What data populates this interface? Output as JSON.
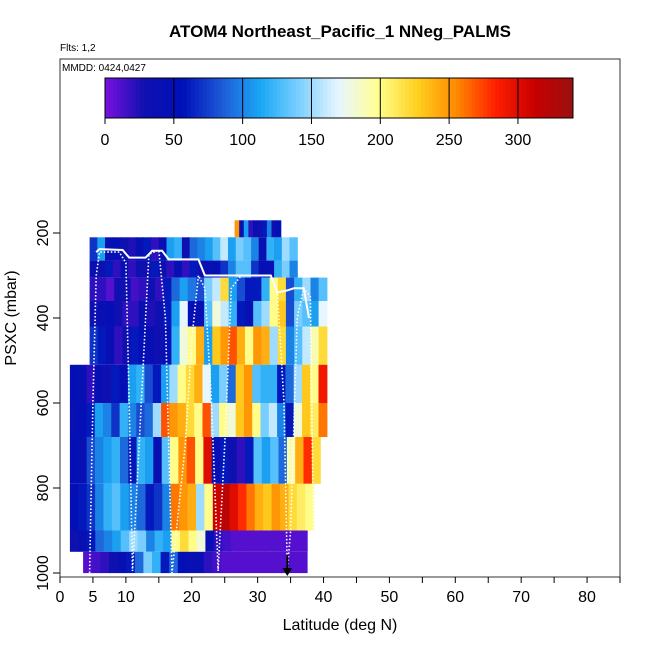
{
  "chart_data": {
    "type": "heatmap",
    "title": "ATOM4 Northeast_Pacific_1 NNeg_PALMS",
    "flights_label": "Flts: 1,2",
    "dates_label": "MMDD: 0424,0427",
    "xlabel": "Latitude (deg N)",
    "ylabel": "PSXC (mbar)",
    "xlim": [
      0,
      85
    ],
    "ylim": [
      1000,
      0
    ],
    "x_ticks": [
      0,
      5,
      10,
      20,
      30,
      40,
      50,
      60,
      70,
      80
    ],
    "x_minor_ticks": [
      15,
      25,
      35,
      45,
      55,
      65,
      75,
      85
    ],
    "y_ticks": [
      200,
      400,
      600,
      800,
      1000
    ],
    "colorbar": {
      "min": 0,
      "max": 340,
      "ticks": [
        0,
        50,
        100,
        150,
        200,
        250,
        300
      ],
      "colors": [
        "#7a10e0",
        "#1010b0",
        "#0010b8",
        "#1e5ad6",
        "#1aa8f5",
        "#7fd0ff",
        "#e8f6ff",
        "#ffff90",
        "#ffd020",
        "#ff8a00",
        "#ff2000",
        "#c80000",
        "#9a1010"
      ]
    },
    "arrow_marker_latitude": 34.5,
    "pressure_levels": [
      {
        "p0": 210,
        "p1": 265,
        "lat_start": 4.5,
        "lat_end": 36.0,
        "values": [
          70,
          110,
          40,
          50,
          30,
          25,
          45,
          60,
          20,
          40,
          110,
          120,
          30,
          90,
          100,
          110,
          130,
          160,
          110,
          140,
          130,
          100,
          40,
          120,
          110,
          150,
          130
        ]
      },
      {
        "p0": 265,
        "p1": 305,
        "lat_start": 4.5,
        "lat_end": 36.0,
        "values": [
          40,
          30,
          60,
          20,
          40,
          20,
          30,
          30,
          60,
          30,
          20,
          40,
          20,
          60,
          30,
          40,
          50,
          70,
          100,
          130,
          130,
          70,
          40,
          40,
          120,
          140,
          100
        ]
      },
      {
        "p0": 305,
        "p1": 360,
        "lat_start": 4.5,
        "lat_end": 40.5,
        "values": [
          20,
          20,
          10,
          30,
          30,
          15,
          20,
          30,
          20,
          60,
          90,
          110,
          95,
          80,
          140,
          160,
          220,
          110,
          80,
          60,
          60,
          120,
          200,
          220,
          80,
          120,
          150,
          100,
          130
        ]
      },
      {
        "p0": 360,
        "p1": 420,
        "lat_start": 4.5,
        "lat_end": 40.5,
        "values": [
          30,
          40,
          50,
          30,
          20,
          20,
          40,
          25,
          30,
          60,
          110,
          170,
          50,
          40,
          130,
          180,
          160,
          120,
          60,
          40,
          130,
          150,
          200,
          230,
          80,
          140,
          130,
          110,
          170
        ]
      },
      {
        "p0": 420,
        "p1": 510,
        "lat_start": 4.5,
        "lat_end": 40.5,
        "values": [
          70,
          60,
          40,
          20,
          30,
          60,
          50,
          40,
          30,
          50,
          120,
          180,
          200,
          240,
          110,
          230,
          250,
          270,
          240,
          200,
          250,
          240,
          150,
          220,
          100,
          130,
          160,
          190,
          220
        ]
      },
      {
        "p0": 510,
        "p1": 600,
        "lat_start": 1.5,
        "lat_end": 40.5,
        "values": [
          50,
          40,
          20,
          40,
          30,
          60,
          50,
          110,
          120,
          80,
          60,
          110,
          150,
          200,
          220,
          240,
          170,
          110,
          140,
          90,
          230,
          250,
          130,
          120,
          120,
          60,
          90,
          150,
          230,
          200,
          290
        ]
      },
      {
        "p0": 600,
        "p1": 680,
        "lat_start": 1.5,
        "lat_end": 40.5,
        "values": [
          40,
          50,
          60,
          110,
          100,
          70,
          120,
          100,
          80,
          90,
          150,
          270,
          250,
          240,
          220,
          200,
          270,
          150,
          200,
          180,
          230,
          250,
          200,
          140,
          160,
          100,
          60,
          180,
          230,
          210,
          260
        ]
      },
      {
        "p0": 680,
        "p1": 790,
        "lat_start": 1.5,
        "lat_end": 39.5,
        "values": [
          50,
          40,
          80,
          100,
          110,
          120,
          90,
          60,
          120,
          110,
          40,
          130,
          200,
          250,
          270,
          200,
          300,
          40,
          60,
          30,
          20,
          60,
          130,
          110,
          130,
          90,
          190,
          240,
          280,
          220
        ]
      },
      {
        "p0": 790,
        "p1": 900,
        "lat_start": 1.5,
        "lat_end": 38.5,
        "values": [
          50,
          60,
          70,
          100,
          120,
          130,
          110,
          100,
          90,
          60,
          70,
          100,
          260,
          250,
          240,
          150,
          200,
          310,
          320,
          300,
          280,
          260,
          240,
          230,
          250,
          240,
          220,
          210,
          200
        ]
      },
      {
        "p0": 900,
        "p1": 950,
        "lat_start": 1.5,
        "lat_end": 37.5,
        "values": [
          30,
          40,
          60,
          90,
          100,
          110,
          130,
          150,
          140,
          100,
          120,
          110,
          200,
          220,
          200,
          180,
          40,
          20,
          15,
          10,
          10,
          10,
          10,
          10,
          10,
          10,
          10,
          10
        ]
      },
      {
        "p0": 950,
        "p1": 1000,
        "lat_start": 3.5,
        "lat_end": 37.5,
        "values": [
          10,
          15,
          20,
          30,
          40,
          60,
          90,
          140,
          120,
          60,
          90,
          50,
          40,
          40,
          20,
          15,
          10,
          10,
          10,
          10,
          10,
          10,
          10,
          10,
          10,
          10
        ]
      },
      {
        "p0": 170,
        "p1": 210,
        "lat_start": 26.5,
        "lat_end": 33.5,
        "values": [
          250,
          40,
          110,
          20,
          40,
          30,
          60,
          100,
          30,
          50
        ]
      }
    ],
    "flight_tracks": [
      {
        "style": "dotted",
        "points": [
          [
            4.5,
            1000
          ],
          [
            5,
            600
          ],
          [
            5.5,
            300
          ],
          [
            6,
            245
          ],
          [
            9,
            245
          ],
          [
            10,
            270
          ],
          [
            10.5,
            600
          ],
          [
            11,
            995
          ],
          [
            12,
            700
          ],
          [
            13,
            400
          ],
          [
            13.5,
            250
          ],
          [
            15,
            240
          ],
          [
            16,
            400
          ],
          [
            16.5,
            700
          ],
          [
            17,
            1000
          ],
          [
            19,
            700
          ],
          [
            20,
            450
          ],
          [
            21,
            300
          ],
          [
            22,
            330
          ],
          [
            23,
            600
          ],
          [
            24,
            995
          ],
          [
            25,
            700
          ],
          [
            26,
            330
          ],
          [
            27.5,
            300
          ],
          [
            30,
            300
          ],
          [
            32,
            300
          ],
          [
            33,
            340
          ],
          [
            34,
            600
          ],
          [
            34.5,
            995
          ],
          [
            35,
            900
          ],
          [
            36,
            400
          ],
          [
            37,
            330
          ],
          [
            38,
            350
          ],
          [
            38.3,
            700
          ],
          [
            38.6,
            1000
          ]
        ]
      },
      {
        "style": "solid",
        "points": [
          [
            5.5,
            245
          ],
          [
            6,
            238
          ],
          [
            9.5,
            240
          ],
          [
            10.5,
            258
          ],
          [
            13,
            258
          ],
          [
            14,
            242
          ],
          [
            15.5,
            242
          ],
          [
            16.5,
            262
          ],
          [
            21,
            262
          ],
          [
            22,
            300
          ],
          [
            32,
            300
          ],
          [
            33,
            340
          ],
          [
            34.5,
            335
          ],
          [
            35.5,
            330
          ],
          [
            37,
            330
          ],
          [
            37.8,
            400
          ]
        ]
      }
    ]
  }
}
